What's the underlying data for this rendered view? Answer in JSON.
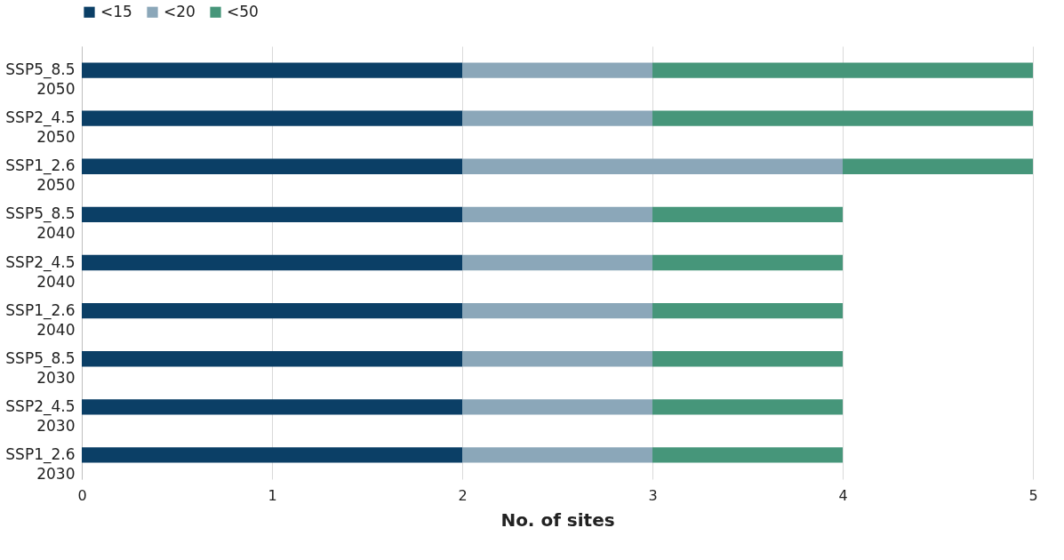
{
  "chart_data": {
    "type": "bar",
    "orientation": "horizontal",
    "stacked": true,
    "xlabel": "No. of sites",
    "categories": [
      "SSP5_8.5\n2050",
      "SSP2_4.5\n2050",
      "SSP1_2.6\n2050",
      "SSP5_8.5\n2040",
      "SSP2_4.5\n2040",
      "SSP1_2.6\n2040",
      "SSP5_8.5\n2030",
      "SSP2_4.5\n2030",
      "SSP1_2.6\n2030"
    ],
    "series": [
      {
        "name": "<15",
        "color": "#0b3f66",
        "values": [
          2,
          2,
          2,
          2,
          2,
          2,
          2,
          2,
          2
        ]
      },
      {
        "name": "<20",
        "color": "#8ba7b9",
        "values": [
          1,
          1,
          2,
          1,
          1,
          1,
          1,
          1,
          1
        ]
      },
      {
        "name": "<50",
        "color": "#46967a",
        "values": [
          2,
          2,
          1,
          1,
          1,
          1,
          1,
          1,
          1
        ]
      }
    ],
    "xlim": [
      0,
      5
    ],
    "xticks": [
      0,
      1,
      2,
      3,
      4,
      5
    ],
    "grid": "x",
    "legend": "top"
  }
}
